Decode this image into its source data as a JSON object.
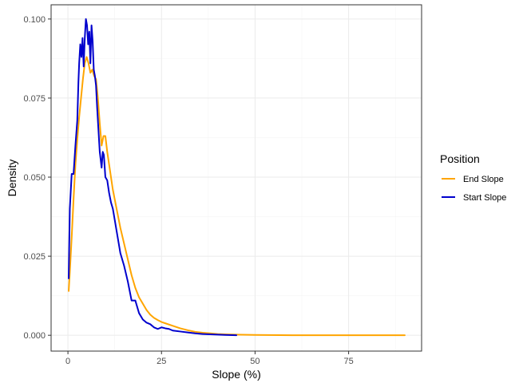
{
  "chart_data": {
    "type": "line",
    "xlabel": "Slope (%)",
    "ylabel": "Density",
    "xlim": [
      -4.5,
      94.5
    ],
    "ylim": [
      -0.005,
      0.1045
    ],
    "x_ticks": [
      0,
      25,
      50,
      75
    ],
    "x_tick_labels": [
      "0",
      "25",
      "50",
      "75"
    ],
    "y_ticks": [
      0.0,
      0.025,
      0.05,
      0.075,
      0.1
    ],
    "y_tick_labels": [
      "0.000",
      "0.025",
      "0.050",
      "0.075",
      "0.100"
    ],
    "grid": true,
    "legend": {
      "title": "Position",
      "placement": "right"
    },
    "series": [
      {
        "name": "End Slope",
        "color": "#FFA500",
        "x": [
          0.2,
          0.5,
          1,
          1.5,
          2,
          2.5,
          3,
          3.5,
          4,
          4.5,
          5,
          5.5,
          6,
          6.5,
          7,
          7.5,
          8,
          8.5,
          9,
          9.5,
          10,
          10.5,
          11,
          11.5,
          12,
          13,
          14,
          15,
          16,
          17,
          18,
          19,
          20,
          21,
          22,
          23,
          24,
          25,
          26,
          28,
          30,
          32,
          34,
          36,
          38,
          40,
          42,
          45,
          50,
          60,
          70,
          80,
          90
        ],
        "values": [
          0.014,
          0.02,
          0.031,
          0.043,
          0.054,
          0.062,
          0.069,
          0.075,
          0.081,
          0.086,
          0.088,
          0.086,
          0.083,
          0.084,
          0.082,
          0.081,
          0.075,
          0.067,
          0.06,
          0.063,
          0.063,
          0.058,
          0.054,
          0.05,
          0.046,
          0.04,
          0.034,
          0.029,
          0.024,
          0.019,
          0.015,
          0.012,
          0.01,
          0.008,
          0.0065,
          0.0055,
          0.0048,
          0.0042,
          0.0038,
          0.003,
          0.0022,
          0.0016,
          0.0011,
          0.0008,
          0.0006,
          0.0004,
          0.0003,
          0.0002,
          0.0001,
          0.0,
          0.0,
          0.0,
          0.0
        ]
      },
      {
        "name": "Start Slope",
        "color": "#0000CD",
        "x": [
          0.2,
          0.5,
          1,
          1.5,
          2,
          2.5,
          2.8,
          3,
          3.3,
          3.6,
          3.9,
          4.2,
          4.5,
          4.8,
          5.1,
          5.4,
          5.7,
          6,
          6.3,
          6.6,
          6.9,
          7.2,
          7.5,
          7.8,
          8.1,
          8.5,
          9,
          9.3,
          9.6,
          10,
          10.5,
          11,
          11.5,
          12,
          13,
          14,
          15,
          16,
          17,
          18,
          19,
          20,
          21,
          22,
          23,
          24,
          25,
          26,
          27,
          28,
          30,
          32,
          34,
          36,
          38,
          40,
          42,
          45
        ],
        "values": [
          0.018,
          0.04,
          0.051,
          0.051,
          0.06,
          0.068,
          0.08,
          0.086,
          0.092,
          0.088,
          0.094,
          0.085,
          0.094,
          0.1,
          0.098,
          0.092,
          0.096,
          0.086,
          0.098,
          0.093,
          0.084,
          0.082,
          0.079,
          0.072,
          0.066,
          0.058,
          0.053,
          0.058,
          0.057,
          0.05,
          0.049,
          0.045,
          0.042,
          0.04,
          0.033,
          0.026,
          0.022,
          0.017,
          0.011,
          0.011,
          0.007,
          0.005,
          0.004,
          0.0035,
          0.0025,
          0.002,
          0.0025,
          0.0022,
          0.002,
          0.0015,
          0.0012,
          0.0009,
          0.0006,
          0.0004,
          0.0003,
          0.0002,
          0.0001,
          0.0
        ]
      }
    ]
  }
}
